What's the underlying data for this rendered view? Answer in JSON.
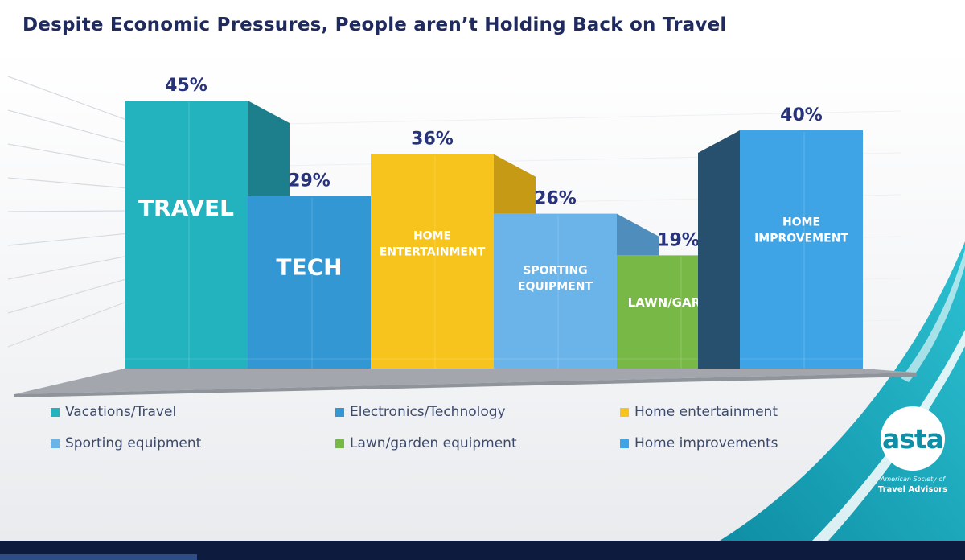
{
  "title": "Despite Economic Pressures, People aren’t Holding Back on Travel",
  "chart_data": {
    "type": "bar",
    "categories": [
      "TRAVEL",
      "TECH",
      "HOME ENTERTAINMENT",
      "SPORTING EQUIPMENT",
      "LAWN/GARDEN",
      "HOME IMPROVEMENT"
    ],
    "values": [
      45,
      29,
      36,
      26,
      19,
      40
    ],
    "value_labels": [
      "45%",
      "29%",
      "36%",
      "26%",
      "19%",
      "40%"
    ],
    "bar_labels": [
      [
        "TRAVEL"
      ],
      [
        "TECH"
      ],
      [
        "HOME",
        "ENTERTAINMENT"
      ],
      [
        "SPORTING",
        "EQUIPMENT"
      ],
      [
        "LAWN/GARDEN"
      ],
      [
        "HOME",
        "IMPROVEMENT"
      ]
    ],
    "legend": [
      "Vacations/Travel",
      "Electronics/Technology",
      "Home entertainment",
      "Sporting equipment",
      "Lawn/garden equipment",
      "Home improvements"
    ],
    "colors": [
      "#22b3bf",
      "#3397d3",
      "#f7c41d",
      "#6ab4ea",
      "#77b846",
      "#3ea4e6"
    ],
    "side_colors": [
      "#1d7f8b",
      "#2a6ea3",
      "#c69a14",
      "#4f8dbd",
      "#56883a",
      "#26506e"
    ],
    "unit": "%",
    "ylim": [
      0,
      50
    ],
    "legend_position": "bottom"
  },
  "logo": {
    "word": "asta",
    "line1": "American Society of",
    "line2": "Travel Advisors"
  },
  "colors": {
    "title": "#1f2a5e",
    "value_label": "#27337a",
    "platform": "#a3a7ad",
    "footer": "#0d1b3e",
    "accent": "#16a3bd"
  }
}
